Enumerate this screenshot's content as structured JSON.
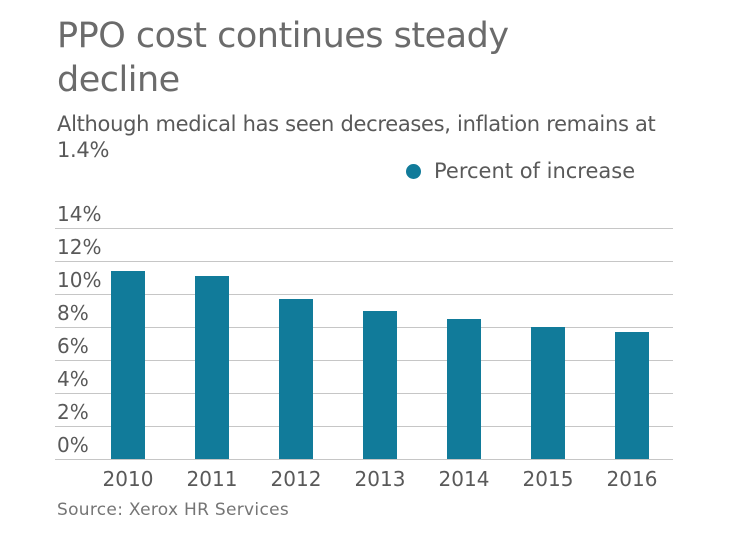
{
  "title": {
    "text": "PPO cost continues steady decline"
  },
  "subtitle": {
    "text": "Although medical has seen decreases, inflation remains at 1.4%"
  },
  "legend": {
    "label": "Percent of increase",
    "marker_color": "#117b9a"
  },
  "source": {
    "text": "Source: Xerox HR Services"
  },
  "colors": {
    "bar": "#117b9a",
    "gridline": "#c6c6c6",
    "title_text": "#6b6b6b",
    "body_text": "#595959",
    "source_text": "#757575"
  },
  "chart_data": {
    "type": "bar",
    "title": "PPO cost continues steady decline",
    "subtitle": "Although medical has seen decreases, inflation remains at 1.4%",
    "categories": [
      "2010",
      "2011",
      "2012",
      "2013",
      "2014",
      "2015",
      "2016"
    ],
    "series": [
      {
        "name": "Percent of increase",
        "values": [
          11.4,
          11.1,
          9.7,
          9.0,
          8.5,
          8.0,
          7.7
        ]
      }
    ],
    "xlabel": "",
    "ylabel": "",
    "ylim": [
      0,
      14
    ],
    "ytick_step": 2,
    "ytick_labels": [
      "0%",
      "2%",
      "4%",
      "6%",
      "8%",
      "10%",
      "12%",
      "14%"
    ],
    "grid": true,
    "legend_position": "top-right",
    "bar_color": "#117b9a",
    "source": "Source: Xerox HR Services"
  }
}
